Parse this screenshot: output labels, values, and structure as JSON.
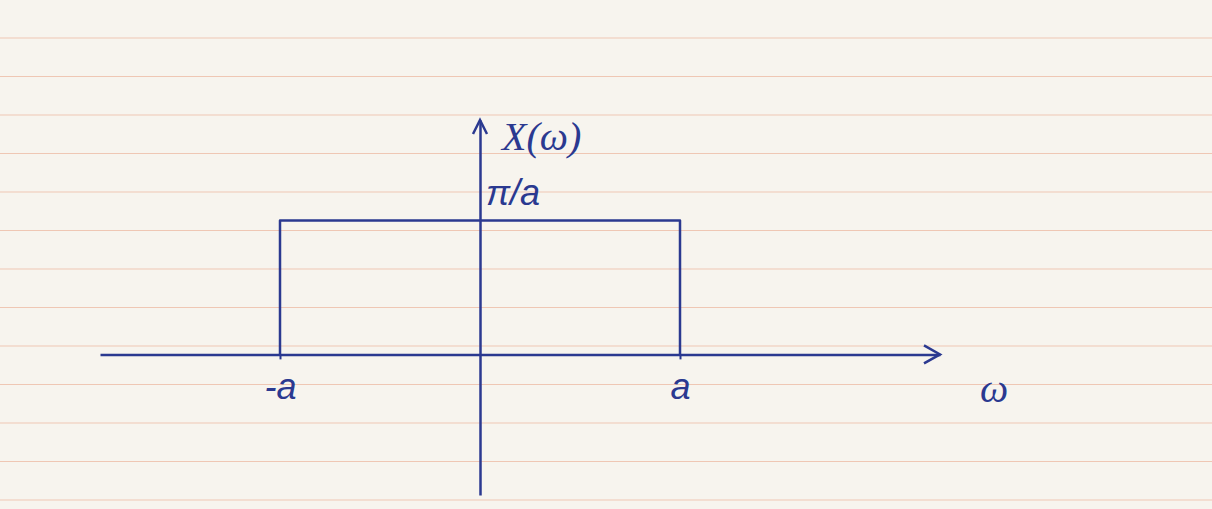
{
  "chart_data": {
    "type": "line",
    "x": [
      -1,
      -1,
      1,
      1
    ],
    "values": [
      0,
      3.1416,
      3.1416,
      0
    ],
    "color": "#2b3990",
    "xlim": [
      -1.9,
      2.3
    ],
    "ylim": [
      -3.3,
      5.5
    ],
    "xticks": [
      {
        "value": -1,
        "label": "-a"
      },
      {
        "value": 1,
        "label": "a"
      }
    ],
    "yticks": [
      {
        "value": 3.1416,
        "label": "π/a"
      }
    ],
    "xlabel": "ω",
    "ylabel": "X(ω)",
    "grid": false
  }
}
